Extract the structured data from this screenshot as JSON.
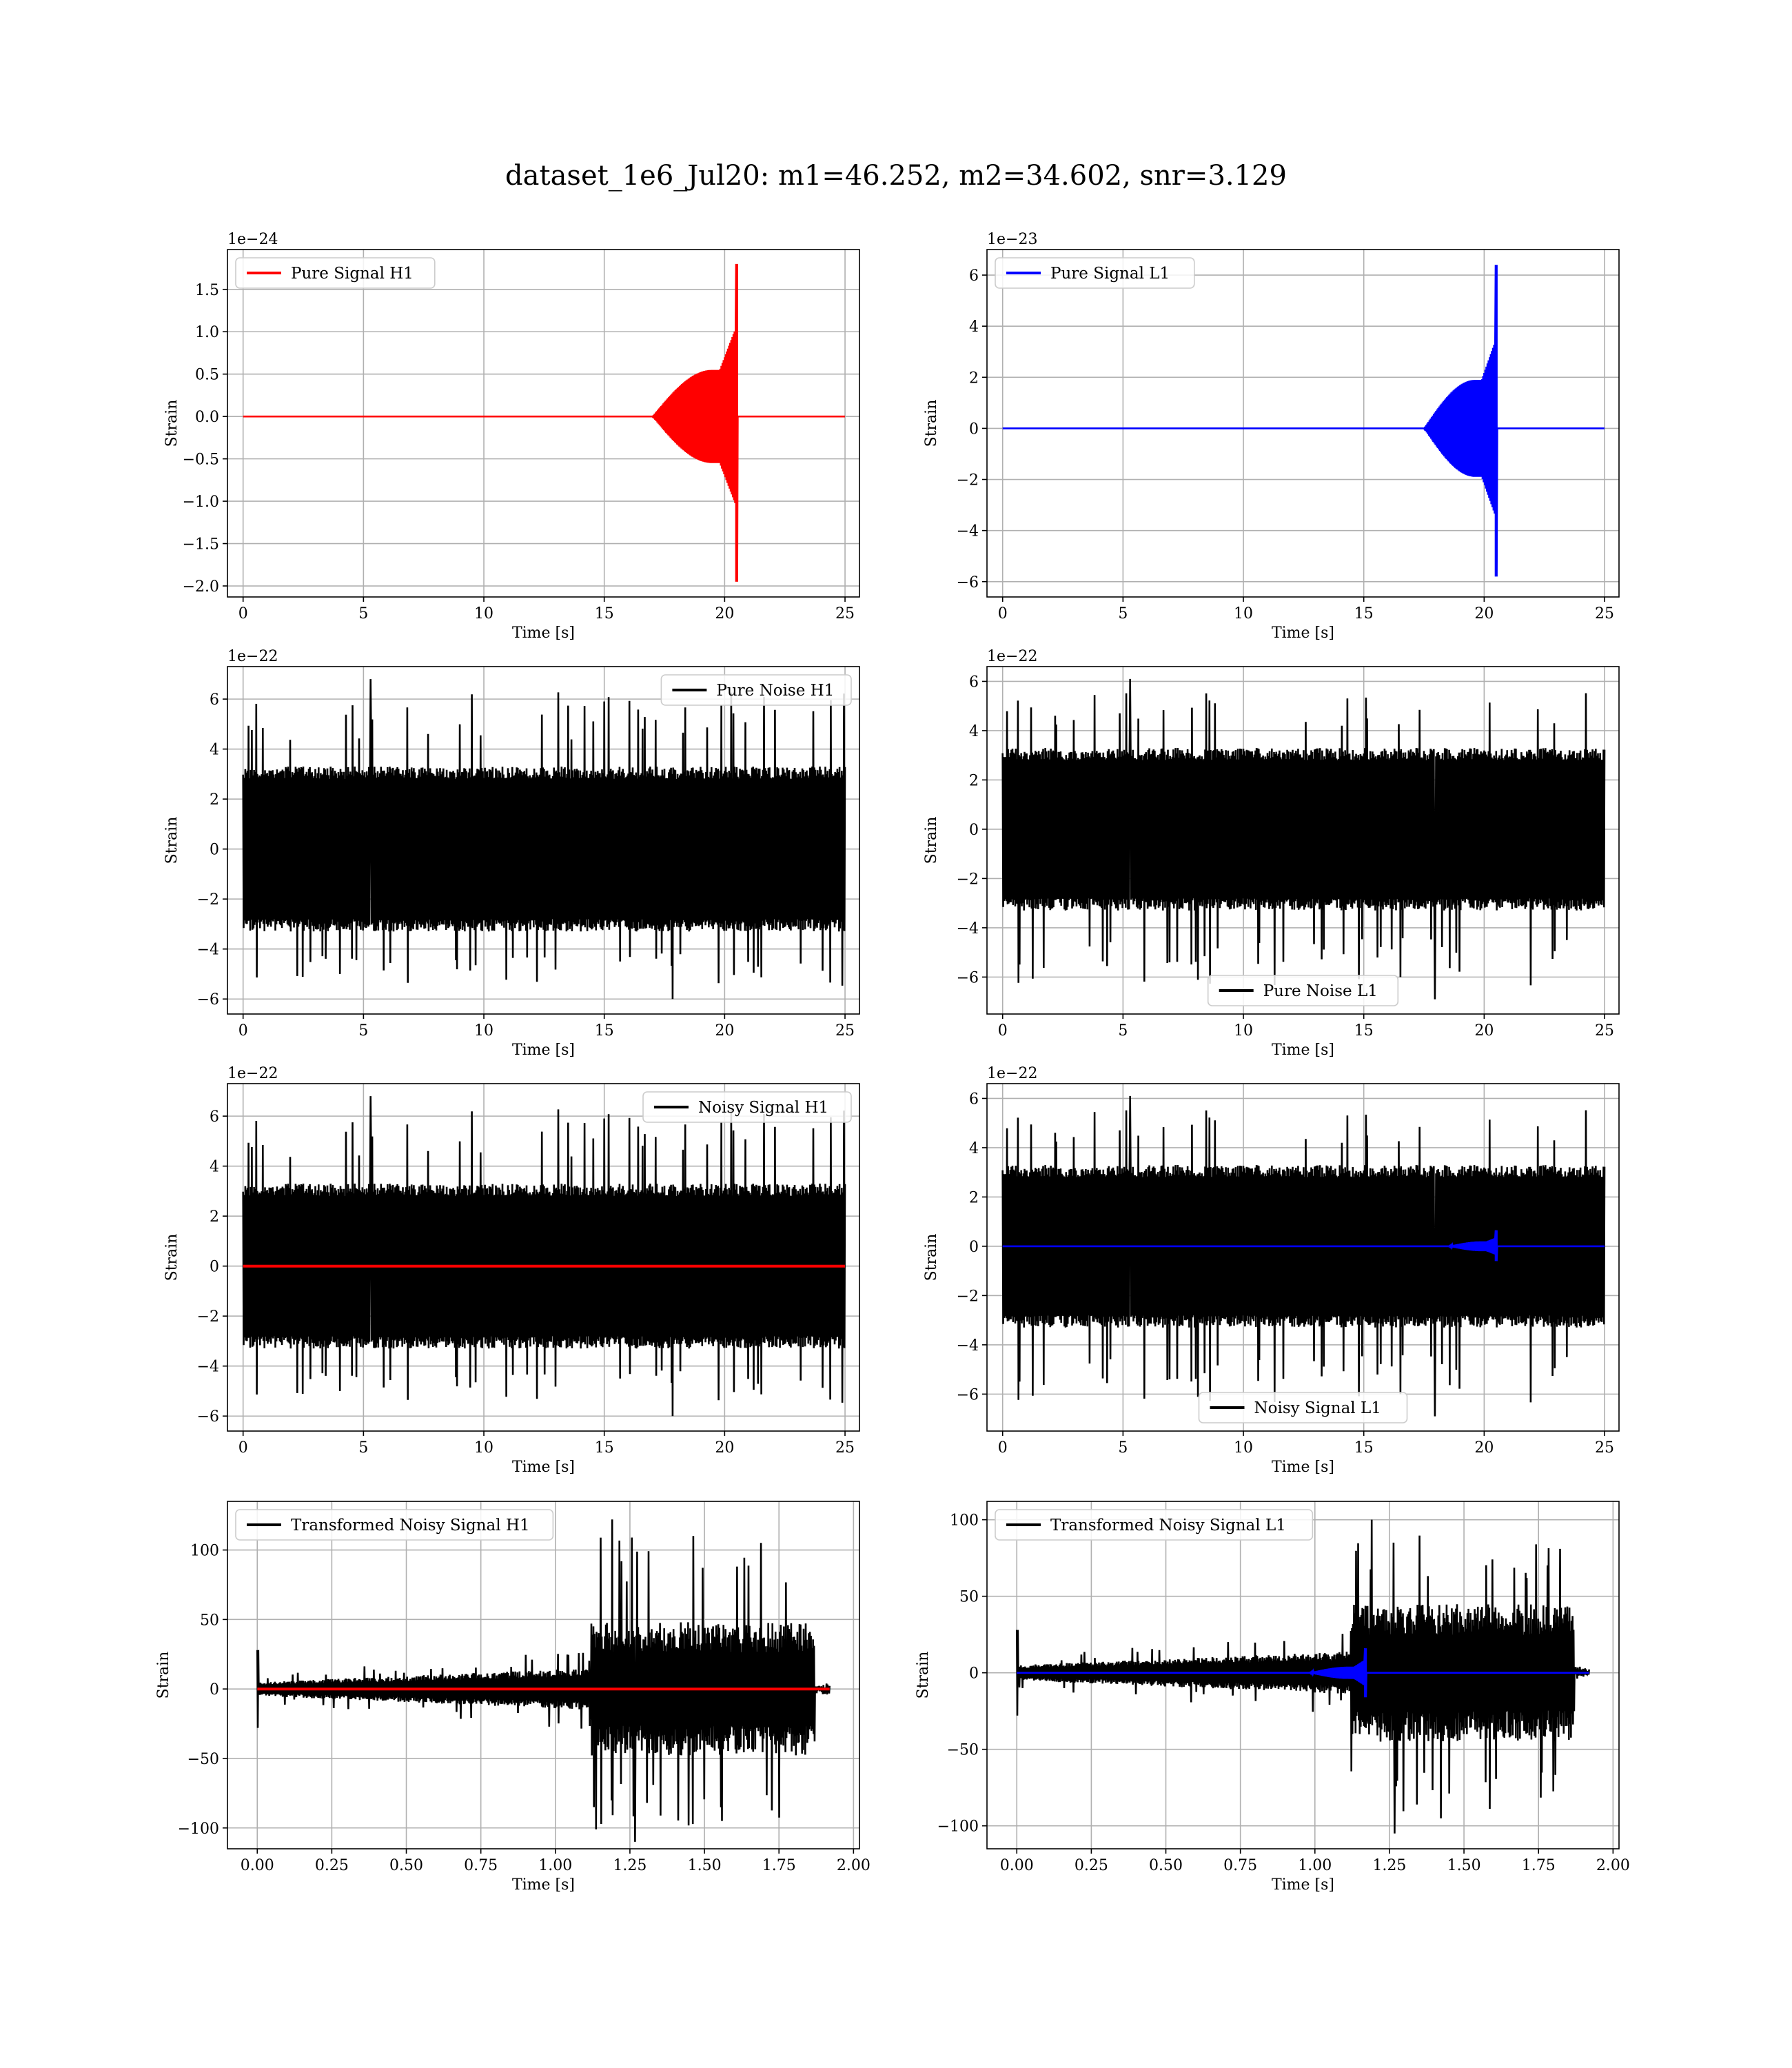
{
  "figure": {
    "title": "dataset_1e6_Jul20: m1=46.252, m2=34.602, snr=3.129",
    "colors": {
      "h1_signal": "#ff0000",
      "l1_signal": "#0000ff",
      "noise": "#000000"
    }
  },
  "chart_data": [
    {
      "id": "pure-signal-h1",
      "type": "line",
      "xlabel": "Time [s]",
      "ylabel": "Strain",
      "y_offset_label": "1e−24",
      "xlim": [
        -0.65,
        25.6
      ],
      "ylim": [
        -2.13,
        1.97
      ],
      "xticks": [
        0,
        5,
        10,
        15,
        20,
        25
      ],
      "xtick_labels": [
        "0",
        "5",
        "10",
        "15",
        "20",
        "25"
      ],
      "yticks": [
        -2.0,
        -1.5,
        -1.0,
        -0.5,
        0.0,
        0.5,
        1.0,
        1.5
      ],
      "ytick_labels": [
        "−2.0",
        "−1.5",
        "−1.0",
        "−0.5",
        "0.0",
        "0.5",
        "1.0",
        "1.5"
      ],
      "grid": true,
      "legend_position": "upper-left",
      "series": [
        {
          "name": "Pure Signal H1",
          "color": "#ff0000",
          "kind": "chirp",
          "x_range": [
            0,
            25
          ],
          "merger_time": 20.5,
          "peak_max": 1.8,
          "peak_min": -1.95,
          "envelope_start": 17.0,
          "envelope_level": 0.55
        }
      ]
    },
    {
      "id": "pure-signal-l1",
      "type": "line",
      "xlabel": "Time [s]",
      "ylabel": "Strain",
      "y_offset_label": "1e−23",
      "xlim": [
        -0.65,
        25.6
      ],
      "ylim": [
        -6.6,
        7.0
      ],
      "xticks": [
        0,
        5,
        10,
        15,
        20,
        25
      ],
      "xtick_labels": [
        "0",
        "5",
        "10",
        "15",
        "20",
        "25"
      ],
      "yticks": [
        -6,
        -4,
        -2,
        0,
        2,
        4,
        6
      ],
      "ytick_labels": [
        "−6",
        "−4",
        "−2",
        "0",
        "2",
        "4",
        "6"
      ],
      "grid": true,
      "legend_position": "upper-left",
      "series": [
        {
          "name": "Pure Signal L1",
          "color": "#0000ff",
          "kind": "chirp",
          "x_range": [
            0,
            25
          ],
          "merger_time": 20.5,
          "peak_max": 6.4,
          "peak_min": -5.8,
          "envelope_start": 17.5,
          "envelope_level": 1.9
        }
      ]
    },
    {
      "id": "pure-noise-h1",
      "type": "line",
      "xlabel": "Time [s]",
      "ylabel": "Strain",
      "y_offset_label": "1e−22",
      "xlim": [
        -0.65,
        25.6
      ],
      "ylim": [
        -6.6,
        7.3
      ],
      "xticks": [
        0,
        5,
        10,
        15,
        20,
        25
      ],
      "xtick_labels": [
        "0",
        "5",
        "10",
        "15",
        "20",
        "25"
      ],
      "yticks": [
        -6,
        -4,
        -2,
        0,
        2,
        4,
        6
      ],
      "ytick_labels": [
        "−6",
        "−4",
        "−2",
        "0",
        "2",
        "4",
        "6"
      ],
      "grid": true,
      "legend_position": "upper-right",
      "series": [
        {
          "name": "Pure Noise H1",
          "color": "#000000",
          "kind": "noise",
          "x_range": [
            0,
            25
          ],
          "band": 3.3,
          "max": 6.8,
          "min": -6.0,
          "seed": 11
        }
      ]
    },
    {
      "id": "pure-noise-l1",
      "type": "line",
      "xlabel": "Time [s]",
      "ylabel": "Strain",
      "y_offset_label": "1e−22",
      "xlim": [
        -0.65,
        25.6
      ],
      "ylim": [
        -7.5,
        6.6
      ],
      "xticks": [
        0,
        5,
        10,
        15,
        20,
        25
      ],
      "xtick_labels": [
        "0",
        "5",
        "10",
        "15",
        "20",
        "25"
      ],
      "yticks": [
        -6,
        -4,
        -2,
        0,
        2,
        4,
        6
      ],
      "ytick_labels": [
        "−6",
        "−4",
        "−2",
        "0",
        "2",
        "4",
        "6"
      ],
      "grid": true,
      "legend_position": "lower-center",
      "series": [
        {
          "name": "Pure Noise L1",
          "color": "#000000",
          "kind": "noise",
          "x_range": [
            0,
            25
          ],
          "band": 3.3,
          "max": 6.1,
          "min": -6.9,
          "seed": 23
        }
      ]
    },
    {
      "id": "noisy-signal-h1",
      "type": "line",
      "xlabel": "Time [s]",
      "ylabel": "Strain",
      "y_offset_label": "1e−22",
      "xlim": [
        -0.65,
        25.6
      ],
      "ylim": [
        -6.6,
        7.3
      ],
      "xticks": [
        0,
        5,
        10,
        15,
        20,
        25
      ],
      "xtick_labels": [
        "0",
        "5",
        "10",
        "15",
        "20",
        "25"
      ],
      "yticks": [
        -6,
        -4,
        -2,
        0,
        2,
        4,
        6
      ],
      "ytick_labels": [
        "−6",
        "−4",
        "−2",
        "0",
        "2",
        "4",
        "6"
      ],
      "grid": true,
      "legend_position": "upper-right",
      "series": [
        {
          "name": "Noisy Signal H1",
          "color": "#000000",
          "kind": "noise",
          "x_range": [
            0,
            25
          ],
          "band": 3.3,
          "max": 6.8,
          "min": -6.0,
          "seed": 11
        },
        {
          "name": "",
          "color": "#ff0000",
          "kind": "flat",
          "x_range": [
            0,
            25
          ],
          "value": 0
        }
      ]
    },
    {
      "id": "noisy-signal-l1",
      "type": "line",
      "xlabel": "Time [s]",
      "ylabel": "Strain",
      "y_offset_label": "1e−22",
      "xlim": [
        -0.65,
        25.6
      ],
      "ylim": [
        -7.5,
        6.6
      ],
      "xticks": [
        0,
        5,
        10,
        15,
        20,
        25
      ],
      "xtick_labels": [
        "0",
        "5",
        "10",
        "15",
        "20",
        "25"
      ],
      "yticks": [
        -6,
        -4,
        -2,
        0,
        2,
        4,
        6
      ],
      "ytick_labels": [
        "−6",
        "−4",
        "−2",
        "0",
        "2",
        "4",
        "6"
      ],
      "grid": true,
      "legend_position": "lower-center",
      "series": [
        {
          "name": "Noisy Signal L1",
          "color": "#000000",
          "kind": "noise",
          "x_range": [
            0,
            25
          ],
          "band": 3.3,
          "max": 6.1,
          "min": -6.9,
          "seed": 23
        },
        {
          "name": "",
          "color": "#0000ff",
          "kind": "chirp",
          "x_range": [
            0,
            25
          ],
          "merger_time": 20.5,
          "peak_max": 0.65,
          "peak_min": -0.6,
          "envelope_start": 18.5,
          "envelope_level": 0.2
        }
      ]
    },
    {
      "id": "transformed-noisy-signal-h1",
      "type": "line",
      "xlabel": "Time [s]",
      "ylabel": "Strain",
      "y_offset_label": "",
      "xlim": [
        -0.1,
        2.02
      ],
      "ylim": [
        -115,
        135
      ],
      "xticks": [
        0.0,
        0.25,
        0.5,
        0.75,
        1.0,
        1.25,
        1.5,
        1.75,
        2.0
      ],
      "xtick_labels": [
        "0.00",
        "0.25",
        "0.50",
        "0.75",
        "1.00",
        "1.25",
        "1.50",
        "1.75",
        "2.00"
      ],
      "yticks": [
        -100,
        -50,
        0,
        50,
        100
      ],
      "ytick_labels": [
        "−100",
        "−50",
        "0",
        "50",
        "100"
      ],
      "grid": true,
      "legend_position": "upper-left",
      "series": [
        {
          "name": "Transformed Noisy Signal H1",
          "color": "#000000",
          "kind": "burst",
          "x_range": [
            0,
            1.92
          ],
          "burst_start": 1.12,
          "burst_end": 1.87,
          "pre_band": 5,
          "pre_grow": 10,
          "burst_band": 48,
          "max": 122,
          "min": -110,
          "seed": 37
        },
        {
          "name": "",
          "color": "#ff0000",
          "kind": "flat",
          "x_range": [
            0,
            1.92
          ],
          "value": 0
        }
      ]
    },
    {
      "id": "transformed-noisy-signal-l1",
      "type": "line",
      "xlabel": "Time [s]",
      "ylabel": "Strain",
      "y_offset_label": "",
      "xlim": [
        -0.1,
        2.02
      ],
      "ylim": [
        -115,
        112
      ],
      "xticks": [
        0.0,
        0.25,
        0.5,
        0.75,
        1.0,
        1.25,
        1.5,
        1.75,
        2.0
      ],
      "xtick_labels": [
        "0.00",
        "0.25",
        "0.50",
        "0.75",
        "1.00",
        "1.25",
        "1.50",
        "1.75",
        "2.00"
      ],
      "yticks": [
        -100,
        -50,
        0,
        50,
        100
      ],
      "ytick_labels": [
        "−100",
        "−50",
        "0",
        "50",
        "100"
      ],
      "grid": true,
      "legend_position": "upper-left",
      "series": [
        {
          "name": "Transformed Noisy Signal L1",
          "color": "#000000",
          "kind": "burst",
          "x_range": [
            0,
            1.92
          ],
          "burst_start": 1.12,
          "burst_end": 1.87,
          "pre_band": 5,
          "pre_grow": 9,
          "burst_band": 45,
          "max": 100,
          "min": -105,
          "seed": 53
        },
        {
          "name": "",
          "color": "#0000ff",
          "kind": "chirp",
          "x_range": [
            0,
            1.92
          ],
          "merger_time": 1.17,
          "peak_max": 16,
          "peak_min": -16,
          "envelope_start": 0.98,
          "envelope_level": 4
        }
      ]
    }
  ]
}
